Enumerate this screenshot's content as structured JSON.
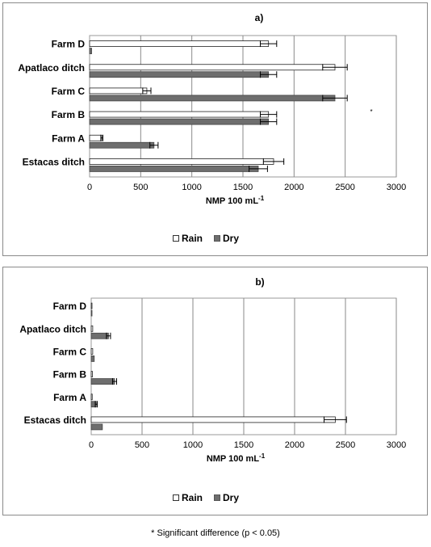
{
  "chart_data": [
    {
      "type": "bar",
      "orientation": "horizontal",
      "title": "a)",
      "categories": [
        "Farm D",
        "Apatlaco ditch",
        "Farm C",
        "Farm B",
        "Farm A",
        "Estacas ditch"
      ],
      "series": [
        {
          "name": "Rain",
          "values": [
            1750,
            2400,
            560,
            1750,
            120,
            1800
          ],
          "errors": [
            80,
            120,
            40,
            80,
            10,
            100
          ],
          "color": "#ffffff"
        },
        {
          "name": "Dry",
          "values": [
            20,
            1750,
            2400,
            1750,
            630,
            1650
          ],
          "errors": [
            0,
            80,
            120,
            80,
            40,
            90
          ],
          "color": "#6e6e6e"
        }
      ],
      "xlabel_base": "NMP 100 mL",
      "xlabel_sup": "-1",
      "xlim": [
        0,
        3000
      ],
      "xticks": [
        "0",
        "500",
        "1000",
        "1500",
        "2000",
        "2500",
        "3000"
      ],
      "grid": true,
      "legend": "bottom",
      "legend_labels": {
        "rain": "Rain",
        "dry": "Dry"
      },
      "annotation": "*"
    },
    {
      "type": "bar",
      "orientation": "horizontal",
      "title": "b)",
      "categories": [
        "Farm D",
        "Apatlaco ditch",
        "Farm C",
        "Farm B",
        "Farm A",
        "Estacas ditch"
      ],
      "series": [
        {
          "name": "Rain",
          "values": [
            5,
            15,
            15,
            12,
            10,
            2400
          ],
          "errors": [
            0,
            0,
            0,
            0,
            0,
            110
          ],
          "color": "#ffffff"
        },
        {
          "name": "Dry",
          "values": [
            8,
            170,
            30,
            230,
            50,
            110
          ],
          "errors": [
            0,
            20,
            0,
            20,
            10,
            0
          ],
          "color": "#6e6e6e"
        }
      ],
      "xlabel_base": "NMP 100 mL",
      "xlabel_sup": "-1",
      "xlim": [
        0,
        3000
      ],
      "xticks": [
        "0",
        "500",
        "1000",
        "1500",
        "2000",
        "2500",
        "3000"
      ],
      "grid": true,
      "legend": "bottom",
      "legend_labels": {
        "rain": "Rain",
        "dry": "Dry"
      }
    }
  ],
  "footnote": "* Significant difference (p < 0.05)"
}
